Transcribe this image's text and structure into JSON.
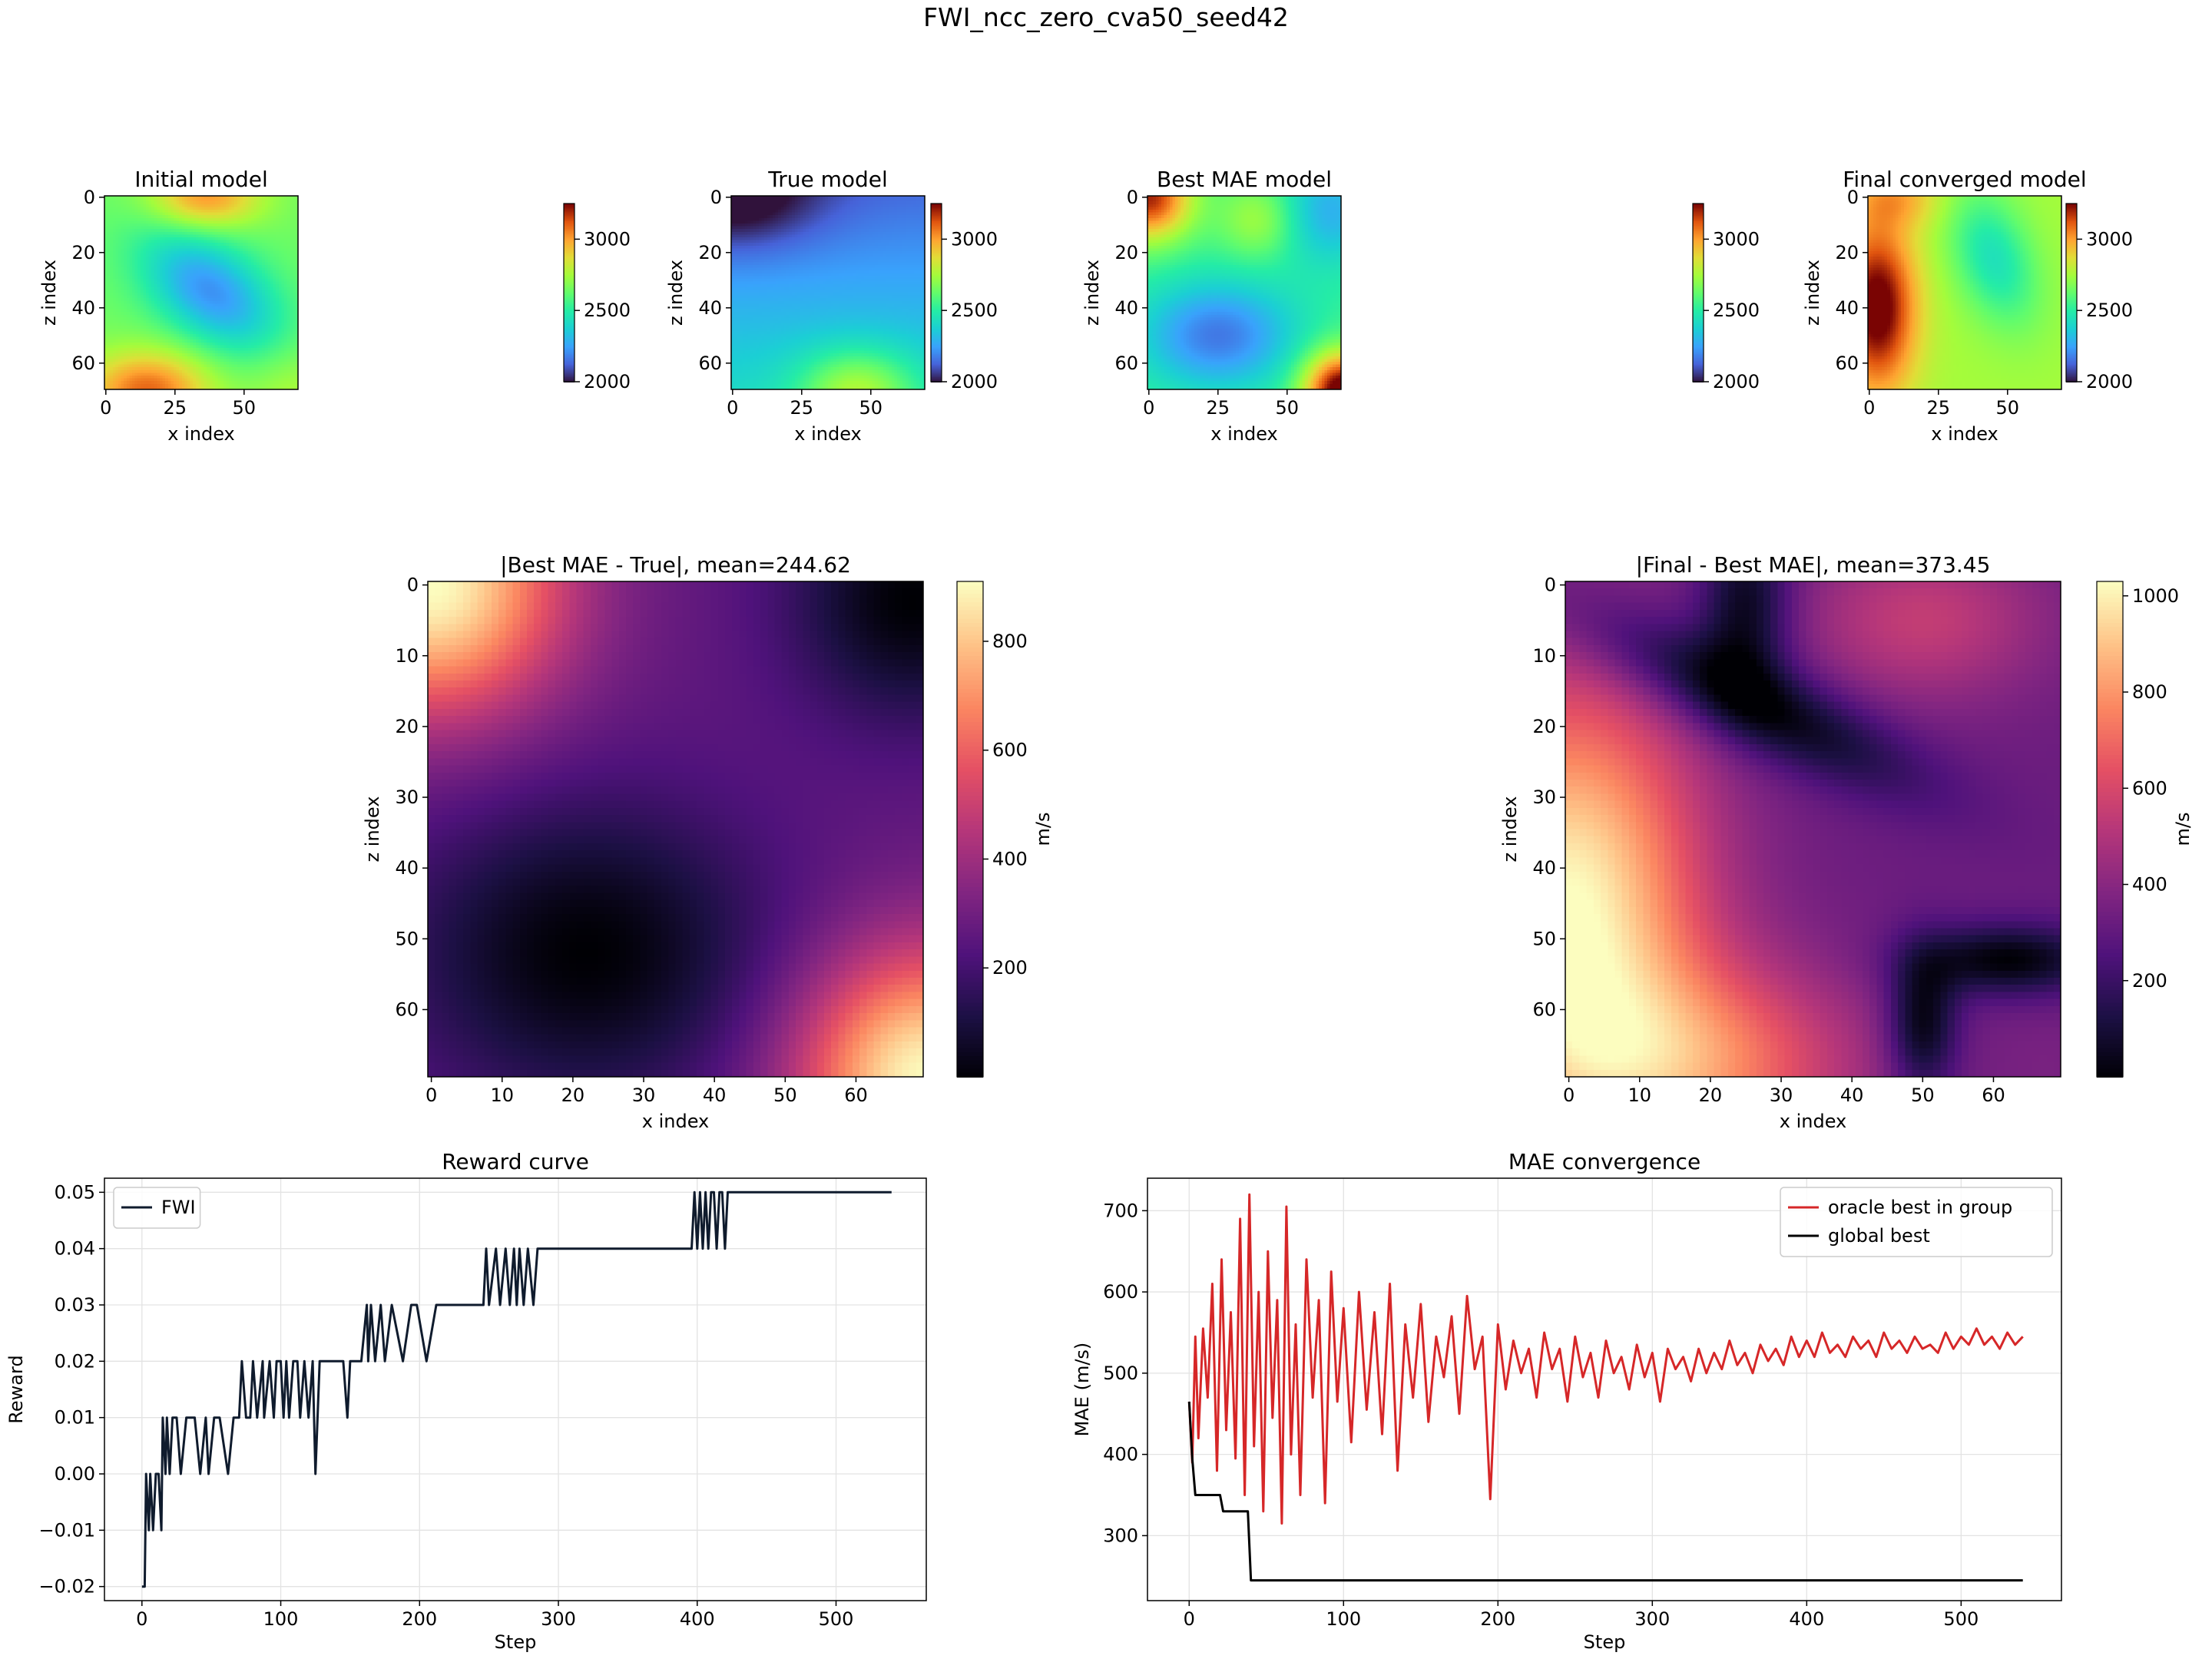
{
  "figure": {
    "title": "FWI_ncc_zero_cva50_seed42"
  },
  "chart_data": [
    {
      "type": "heatmap",
      "title": "Initial model",
      "xlabel": "x index",
      "ylabel": "z index",
      "xticks": [
        0,
        25,
        50
      ],
      "yticks": [
        0,
        20,
        40,
        60
      ],
      "grid_size": [
        70,
        70
      ],
      "colormap": "turbo",
      "vmin": 2000,
      "vmax": 3250,
      "colorbar": {
        "ticks": [
          2000,
          2500,
          3000
        ],
        "label": ""
      },
      "field": {
        "base": 2650,
        "blobs": [
          {
            "x": 38,
            "z": 34,
            "amp": -430,
            "sx": 20,
            "sz": 12,
            "rot": 0.65
          },
          {
            "x": 15,
            "z": 70,
            "amp": 450,
            "sx": 16,
            "sz": 10,
            "rot": 0
          },
          {
            "x": 36,
            "z": 0,
            "amp": 380,
            "sx": 14,
            "sz": 8,
            "rot": 0
          },
          {
            "x": 68,
            "z": 70,
            "amp": 120,
            "sx": 12,
            "sz": 12,
            "rot": 0
          }
        ]
      }
    },
    {
      "type": "heatmap",
      "title": "True model",
      "xlabel": "x index",
      "ylabel": "z index",
      "xticks": [
        0,
        25,
        50
      ],
      "yticks": [
        0,
        20,
        40,
        60
      ],
      "grid_size": [
        70,
        70
      ],
      "colormap": "turbo",
      "vmin": 2000,
      "vmax": 3250,
      "colorbar": {
        "ticks": [
          2000,
          2500,
          3000
        ],
        "label": ""
      },
      "field": {
        "base": 2150,
        "zgrad": 260,
        "blobs": [
          {
            "x": 0,
            "z": 0,
            "amp": -230,
            "sx": 22,
            "sz": 14,
            "rot": 0
          },
          {
            "x": 45,
            "z": 70,
            "amp": 360,
            "sx": 15,
            "sz": 11,
            "rot": 0
          }
        ]
      }
    },
    {
      "type": "heatmap",
      "title": "Best MAE model",
      "xlabel": "x index",
      "ylabel": "z index",
      "xticks": [
        0,
        25,
        50
      ],
      "yticks": [
        0,
        20,
        40,
        60
      ],
      "grid_size": [
        70,
        70
      ],
      "colormap": "turbo",
      "vmin": 2000,
      "vmax": 3250,
      "colorbar": {
        "ticks": [
          2000,
          2500,
          3000
        ],
        "label": ""
      },
      "field": {
        "base": 2550,
        "blobs": [
          {
            "x": 0,
            "z": 0,
            "amp": 650,
            "sx": 11,
            "sz": 11,
            "rot": 0
          },
          {
            "x": 70,
            "z": 70,
            "amp": 800,
            "sx": 10,
            "sz": 10,
            "rot": 0
          },
          {
            "x": 25,
            "z": 50,
            "amp": -380,
            "sx": 20,
            "sz": 14,
            "rot": 0
          },
          {
            "x": 65,
            "z": 5,
            "amp": -260,
            "sx": 14,
            "sz": 14,
            "rot": 0
          },
          {
            "x": 40,
            "z": 8,
            "amp": 220,
            "sx": 10,
            "sz": 10,
            "rot": 0
          }
        ]
      }
    },
    {
      "type": "heatmap",
      "title": "Final converged model",
      "xlabel": "x index",
      "ylabel": "z index",
      "xticks": [
        0,
        25,
        50
      ],
      "yticks": [
        0,
        20,
        40,
        60
      ],
      "grid_size": [
        70,
        70
      ],
      "colormap": "turbo",
      "vmin": 2000,
      "vmax": 3250,
      "colorbar": {
        "ticks": [
          2000,
          2500,
          3000
        ],
        "label": ""
      },
      "field": {
        "base": 2750,
        "blobs": [
          {
            "x": 3,
            "z": 40,
            "amp": 560,
            "sx": 10,
            "sz": 22,
            "rot": 0
          },
          {
            "x": 45,
            "z": 22,
            "amp": -300,
            "sx": 10,
            "sz": 18,
            "rot": -0.35
          },
          {
            "x": 10,
            "z": 0,
            "amp": 200,
            "sx": 12,
            "sz": 8,
            "rot": 0
          }
        ]
      }
    },
    {
      "type": "heatmap",
      "title": "|Best MAE - True|, mean=244.62",
      "xlabel": "x index",
      "ylabel": "z index",
      "xticks": [
        0,
        10,
        20,
        30,
        40,
        50,
        60
      ],
      "yticks": [
        0,
        10,
        20,
        30,
        40,
        50,
        60
      ],
      "grid_size": [
        70,
        70
      ],
      "colormap": "magma",
      "vmin": 0,
      "vmax": 910,
      "colorbar": {
        "ticks": [
          200,
          400,
          600,
          800
        ],
        "label": "m/s"
      },
      "field": {
        "base": 270,
        "blobs": [
          {
            "x": 0,
            "z": 0,
            "amp": 640,
            "sx": 13,
            "sz": 13,
            "rot": 0
          },
          {
            "x": 70,
            "z": 70,
            "amp": 640,
            "sx": 13,
            "sz": 13,
            "rot": 0
          },
          {
            "x": 22,
            "z": 52,
            "amp": -270,
            "sx": 18,
            "sz": 15,
            "rot": 0
          },
          {
            "x": 68,
            "z": 2,
            "amp": -270,
            "sx": 12,
            "sz": 12,
            "rot": 0
          }
        ]
      }
    },
    {
      "type": "heatmap",
      "title": "|Final - Best MAE|, mean=373.45",
      "xlabel": "x index",
      "ylabel": "z index",
      "xticks": [
        0,
        10,
        20,
        30,
        40,
        50,
        60
      ],
      "yticks": [
        0,
        10,
        20,
        30,
        40,
        50,
        60
      ],
      "grid_size": [
        70,
        70
      ],
      "colormap": "magma",
      "vmin": 0,
      "vmax": 1030,
      "colorbar": {
        "ticks": [
          200,
          400,
          600,
          800,
          1000
        ],
        "label": "m/s"
      },
      "field": {
        "base": 330,
        "blobs": [
          {
            "x": 0,
            "z": 46,
            "amp": 700,
            "sx": 13,
            "sz": 22,
            "rot": 0
          },
          {
            "x": 18,
            "z": 68,
            "amp": 400,
            "sx": 16,
            "sz": 10,
            "rot": 0
          },
          {
            "x": 25,
            "z": 16,
            "amp": -340,
            "sx": 18,
            "sz": 4.5,
            "rot": 0.45
          },
          {
            "x": 25,
            "z": 3,
            "amp": -300,
            "sx": 4.5,
            "sz": 9,
            "rot": 0
          },
          {
            "x": 50,
            "z": 62,
            "amp": -330,
            "sx": 3.5,
            "sz": 7,
            "rot": 0
          },
          {
            "x": 62,
            "z": 53,
            "amp": -330,
            "sx": 9,
            "sz": 3.5,
            "rot": 0
          },
          {
            "x": 50,
            "z": 5,
            "amp": 220,
            "sx": 12,
            "sz": 8,
            "rot": 0
          },
          {
            "x": 68,
            "z": 68,
            "amp": 30,
            "sx": 6,
            "sz": 6,
            "rot": 0
          }
        ]
      }
    },
    {
      "type": "line",
      "title": "Reward curve",
      "xlabel": "Step",
      "ylabel": "Reward",
      "xlim": [
        -27,
        565
      ],
      "ylim": [
        -0.0225,
        0.0525
      ],
      "xticks": [
        0,
        100,
        200,
        300,
        400,
        500
      ],
      "yticks": [
        -0.02,
        -0.01,
        0.0,
        0.01,
        0.02,
        0.03,
        0.04,
        0.05
      ],
      "ytick_labels": [
        "−0.02",
        "−0.01",
        "0.00",
        "0.01",
        "0.02",
        "0.03",
        "0.04",
        "0.05"
      ],
      "grid": true,
      "legend": {
        "placement": "upper left"
      },
      "series": [
        {
          "name": "FWI",
          "color": "#0f1b2d",
          "x": [
            0,
            2,
            3,
            5,
            6,
            8,
            10,
            12,
            14,
            15,
            17,
            18,
            20,
            22,
            25,
            28,
            32,
            38,
            42,
            46,
            48,
            52,
            56,
            62,
            66,
            70,
            72,
            75,
            78,
            80,
            83,
            87,
            88,
            92,
            95,
            97,
            100,
            102,
            104,
            106,
            109,
            112,
            114,
            117,
            120,
            123,
            125,
            128,
            135,
            140,
            145,
            148,
            150,
            152,
            158,
            162,
            163,
            165,
            168,
            172,
            175,
            180,
            188,
            194,
            198,
            205,
            212,
            220,
            230,
            240,
            246,
            248,
            250,
            255,
            258,
            262,
            265,
            268,
            270,
            272,
            275,
            278,
            282,
            285,
            290,
            300,
            310,
            320,
            330,
            340,
            350,
            360,
            370,
            380,
            390,
            396,
            398,
            400,
            402,
            404,
            406,
            408,
            410,
            412,
            414,
            416,
            418,
            420,
            422,
            426,
            430,
            440,
            460,
            480,
            500,
            520,
            540
          ],
          "y": [
            -0.02,
            -0.02,
            0.0,
            -0.01,
            0.0,
            -0.01,
            0.0,
            0.0,
            -0.01,
            0.01,
            0.0,
            0.01,
            0.0,
            0.01,
            0.01,
            0.0,
            0.01,
            0.01,
            0.0,
            0.01,
            0.0,
            0.01,
            0.01,
            0.0,
            0.01,
            0.01,
            0.02,
            0.01,
            0.01,
            0.02,
            0.01,
            0.02,
            0.01,
            0.02,
            0.01,
            0.02,
            0.02,
            0.01,
            0.02,
            0.01,
            0.02,
            0.02,
            0.01,
            0.02,
            0.01,
            0.02,
            0.0,
            0.02,
            0.02,
            0.02,
            0.02,
            0.01,
            0.02,
            0.02,
            0.02,
            0.03,
            0.02,
            0.03,
            0.02,
            0.03,
            0.02,
            0.03,
            0.02,
            0.03,
            0.03,
            0.02,
            0.03,
            0.03,
            0.03,
            0.03,
            0.03,
            0.04,
            0.03,
            0.04,
            0.03,
            0.04,
            0.03,
            0.04,
            0.03,
            0.04,
            0.03,
            0.04,
            0.03,
            0.04,
            0.04,
            0.04,
            0.04,
            0.04,
            0.04,
            0.04,
            0.04,
            0.04,
            0.04,
            0.04,
            0.04,
            0.04,
            0.05,
            0.04,
            0.05,
            0.04,
            0.05,
            0.04,
            0.05,
            0.05,
            0.04,
            0.05,
            0.05,
            0.04,
            0.05,
            0.05,
            0.05,
            0.05,
            0.05,
            0.05,
            0.05,
            0.05,
            0.05
          ]
        }
      ]
    },
    {
      "type": "line",
      "title": "MAE convergence",
      "xlabel": "Step",
      "ylabel": "MAE (m/s)",
      "xlim": [
        -27,
        565
      ],
      "ylim": [
        220,
        740
      ],
      "xticks": [
        0,
        100,
        200,
        300,
        400,
        500
      ],
      "yticks": [
        300,
        400,
        500,
        600,
        700
      ],
      "grid": true,
      "legend": {
        "placement": "upper right"
      },
      "series": [
        {
          "name": "oracle best in group",
          "color": "#d62728",
          "x": [
            0,
            2,
            4,
            6,
            9,
            12,
            15,
            18,
            21,
            24,
            27,
            30,
            33,
            36,
            39,
            42,
            45,
            48,
            51,
            54,
            57,
            60,
            63,
            66,
            69,
            72,
            76,
            80,
            84,
            88,
            92,
            96,
            100,
            105,
            110,
            115,
            120,
            125,
            130,
            135,
            140,
            145,
            150,
            155,
            160,
            165,
            170,
            175,
            180,
            185,
            190,
            195,
            200,
            205,
            210,
            215,
            220,
            225,
            230,
            235,
            240,
            245,
            250,
            255,
            260,
            265,
            270,
            275,
            280,
            285,
            290,
            295,
            300,
            305,
            310,
            315,
            320,
            325,
            330,
            335,
            340,
            345,
            350,
            355,
            360,
            365,
            370,
            375,
            380,
            385,
            390,
            395,
            400,
            405,
            410,
            415,
            420,
            425,
            430,
            435,
            440,
            445,
            450,
            455,
            460,
            465,
            470,
            475,
            480,
            485,
            490,
            495,
            500,
            505,
            510,
            515,
            520,
            525,
            530,
            535,
            540
          ],
          "y": [
            465,
            390,
            545,
            420,
            555,
            470,
            610,
            380,
            640,
            430,
            575,
            395,
            690,
            350,
            720,
            410,
            600,
            330,
            650,
            445,
            590,
            315,
            705,
            400,
            560,
            350,
            640,
            470,
            590,
            340,
            625,
            465,
            580,
            415,
            600,
            455,
            575,
            425,
            610,
            380,
            560,
            470,
            585,
            440,
            545,
            495,
            570,
            450,
            595,
            505,
            545,
            345,
            560,
            480,
            540,
            500,
            530,
            470,
            550,
            505,
            530,
            465,
            545,
            495,
            525,
            470,
            540,
            500,
            520,
            480,
            535,
            495,
            525,
            465,
            530,
            505,
            520,
            490,
            530,
            500,
            525,
            505,
            540,
            510,
            525,
            500,
            535,
            515,
            530,
            510,
            545,
            520,
            540,
            520,
            550,
            525,
            535,
            520,
            545,
            530,
            540,
            520,
            550,
            530,
            540,
            525,
            545,
            530,
            535,
            525,
            550,
            530,
            545,
            535,
            555,
            535,
            545,
            530,
            550,
            535,
            545
          ]
        },
        {
          "name": "global best",
          "color": "#000000",
          "x": [
            0,
            2,
            4,
            6,
            20,
            22,
            36,
            38,
            40,
            540
          ],
          "y": [
            465,
            395,
            350,
            350,
            350,
            330,
            330,
            330,
            245,
            245
          ]
        }
      ]
    }
  ]
}
